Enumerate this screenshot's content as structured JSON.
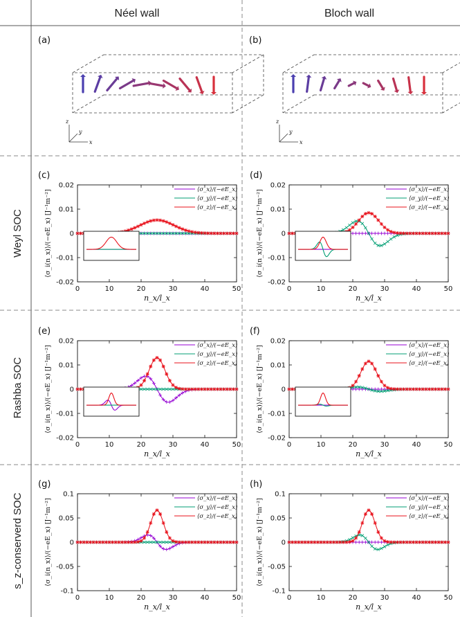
{
  "headers": {
    "neel": "Néel wall",
    "bloch": "Bloch wall"
  },
  "rows": {
    "weyl": "Weyl SOC",
    "rashba": "Rashba SOC",
    "sz": "s_z-conserverd SOC"
  },
  "panels_3d": {
    "a": "(a)",
    "b": "(b)"
  },
  "axis_triad": {
    "z": "z",
    "y": "y",
    "x": "x"
  },
  "colors": {
    "sx": "#9400d3",
    "sy": "#009e73",
    "sz": "#e8101a",
    "spin_start": "#4b3fb0",
    "spin_end": "#d8303c"
  },
  "chart_data": [
    {
      "panel": "(c)",
      "type": "line",
      "wall": "Néel",
      "soc": "Weyl",
      "xlabel": "n_x/l_x",
      "ylabel": "⟨σ_i(n_x)⟩/(−eE_x) [J⁻¹m⁻²]",
      "xlim": [
        0,
        50
      ],
      "ylim": [
        -0.02,
        0.02
      ],
      "yticks": [
        "0.02",
        "0.01",
        "0",
        "-0.01",
        "-0.02"
      ],
      "xticks": [
        "0",
        "10",
        "20",
        "30",
        "40",
        "50"
      ],
      "legend": "top-right",
      "inset": true,
      "series": [
        {
          "name": "⟨σ_x⟩/(−eE_x)",
          "peak": 0,
          "center": 25,
          "width": 6,
          "shape": "gauss"
        },
        {
          "name": "⟨σ_y⟩/(−eE_x)",
          "peak": 0,
          "center": 25,
          "width": 6,
          "shape": "gauss"
        },
        {
          "name": "⟨σ_z⟩/(−eE_x)",
          "peak": 0.0055,
          "center": 25,
          "width": 7.5,
          "shape": "gauss"
        }
      ]
    },
    {
      "panel": "(d)",
      "type": "line",
      "wall": "Bloch",
      "soc": "Weyl",
      "xlabel": "n_x/l_x",
      "ylabel": "⟨σ_i(n_x)⟩/(−eE_x) [J⁻¹m⁻²]",
      "xlim": [
        0,
        50
      ],
      "ylim": [
        -0.02,
        0.02
      ],
      "yticks": [
        "0.02",
        "0.01",
        "0",
        "-0.01",
        "-0.02"
      ],
      "xticks": [
        "0",
        "10",
        "20",
        "30",
        "40",
        "50"
      ],
      "legend": "top-right",
      "inset": true,
      "series": [
        {
          "name": "⟨σ_x⟩/(−eE_x)",
          "peak": 0,
          "center": 25,
          "width": 6,
          "shape": "gauss"
        },
        {
          "name": "⟨σ_y⟩/(−eE_x)",
          "peak": 0.0085,
          "center": 25,
          "width": 5,
          "shape": "deriv"
        },
        {
          "name": "⟨σ_z⟩/(−eE_x)",
          "peak": 0.0085,
          "center": 25,
          "width": 4.5,
          "shape": "gauss"
        }
      ]
    },
    {
      "panel": "(e)",
      "type": "line",
      "wall": "Néel",
      "soc": "Rashba",
      "xlabel": "n_x/l_x",
      "ylabel": "⟨σ_i(n_x)⟩/(−eE_x) [J⁻¹m⁻²]",
      "xlim": [
        0,
        50
      ],
      "ylim": [
        -0.02,
        0.02
      ],
      "yticks": [
        "0.02",
        "0.01",
        "0",
        "-0.01",
        "-0.02"
      ],
      "xticks": [
        "0",
        "10",
        "20",
        "30",
        "40",
        "50"
      ],
      "legend": "top-right",
      "inset": true,
      "series": [
        {
          "name": "⟨σ_x⟩/(−eE_x)",
          "peak": 0.009,
          "center": 25,
          "width": 5,
          "shape": "deriv"
        },
        {
          "name": "⟨σ_y⟩/(−eE_x)",
          "peak": 0,
          "center": 25,
          "width": 6,
          "shape": "gauss"
        },
        {
          "name": "⟨σ_z⟩/(−eE_x)",
          "peak": 0.013,
          "center": 25,
          "width": 3.5,
          "shape": "gauss"
        }
      ]
    },
    {
      "panel": "(f)",
      "type": "line",
      "wall": "Bloch",
      "soc": "Rashba",
      "xlabel": "n_x/l_x",
      "ylabel": "⟨σ_i(n_x)⟩/(−eE_x) [J⁻¹m⁻²]",
      "xlim": [
        0,
        50
      ],
      "ylim": [
        -0.02,
        0.02
      ],
      "yticks": [
        "0.02",
        "0.01",
        "0",
        "-0.01",
        "-0.02"
      ],
      "xticks": [
        "0",
        "10",
        "20",
        "30",
        "40",
        "50"
      ],
      "legend": "top-right",
      "inset": true,
      "series": [
        {
          "name": "⟨σ_x⟩/(−eE_x)",
          "peak": 0,
          "center": 25,
          "width": 6,
          "shape": "gauss"
        },
        {
          "name": "⟨σ_y⟩/(−eE_x)",
          "peak": 0.0015,
          "center": 25,
          "width": 5,
          "shape": "deriv"
        },
        {
          "name": "⟨σ_z⟩/(−eE_x)",
          "peak": 0.0115,
          "center": 25,
          "width": 3.5,
          "shape": "gauss"
        }
      ]
    },
    {
      "panel": "(g)",
      "type": "line",
      "wall": "Néel",
      "soc": "s_z-conserved",
      "xlabel": "n_x/l_x",
      "ylabel": "⟨σ_i(n_x)⟩/(−eE_x) [J⁻¹m⁻²]",
      "xlim": [
        0,
        50
      ],
      "ylim": [
        -0.1,
        0.1
      ],
      "yticks": [
        "0.1",
        "0.05",
        "0",
        "-0.05",
        "-0.1"
      ],
      "xticks": [
        "0",
        "10",
        "20",
        "30",
        "40",
        "50"
      ],
      "legend": "top-right",
      "inset": false,
      "series": [
        {
          "name": "⟨σ_x⟩/(−eE_x)",
          "peak": 0.025,
          "center": 25,
          "width": 4,
          "shape": "deriv"
        },
        {
          "name": "⟨σ_y⟩/(−eE_x)",
          "peak": 0,
          "center": 25,
          "width": 6,
          "shape": "gauss"
        },
        {
          "name": "⟨σ_z⟩/(−eE_x)",
          "peak": 0.066,
          "center": 25,
          "width": 2.8,
          "shape": "gauss"
        }
      ]
    },
    {
      "panel": "(h)",
      "type": "line",
      "wall": "Bloch",
      "soc": "s_z-conserved",
      "xlabel": "n_x/l_x",
      "ylabel": "⟨σ_i(n_x)⟩/(−eE_x) [J⁻¹m⁻²]",
      "xlim": [
        0,
        50
      ],
      "ylim": [
        -0.1,
        0.1
      ],
      "yticks": [
        "0.1",
        "0.05",
        "0",
        "-0.05",
        "-0.1"
      ],
      "xticks": [
        "0",
        "10",
        "20",
        "30",
        "40",
        "50"
      ],
      "legend": "top-right",
      "inset": false,
      "series": [
        {
          "name": "⟨σ_x⟩/(−eE_x)",
          "peak": 0,
          "center": 25,
          "width": 6,
          "shape": "gauss"
        },
        {
          "name": "⟨σ_y⟩/(−eE_x)",
          "peak": 0.025,
          "center": 25,
          "width": 4,
          "shape": "deriv"
        },
        {
          "name": "⟨σ_z⟩/(−eE_x)",
          "peak": 0.066,
          "center": 25,
          "width": 2.8,
          "shape": "gauss"
        }
      ]
    }
  ]
}
